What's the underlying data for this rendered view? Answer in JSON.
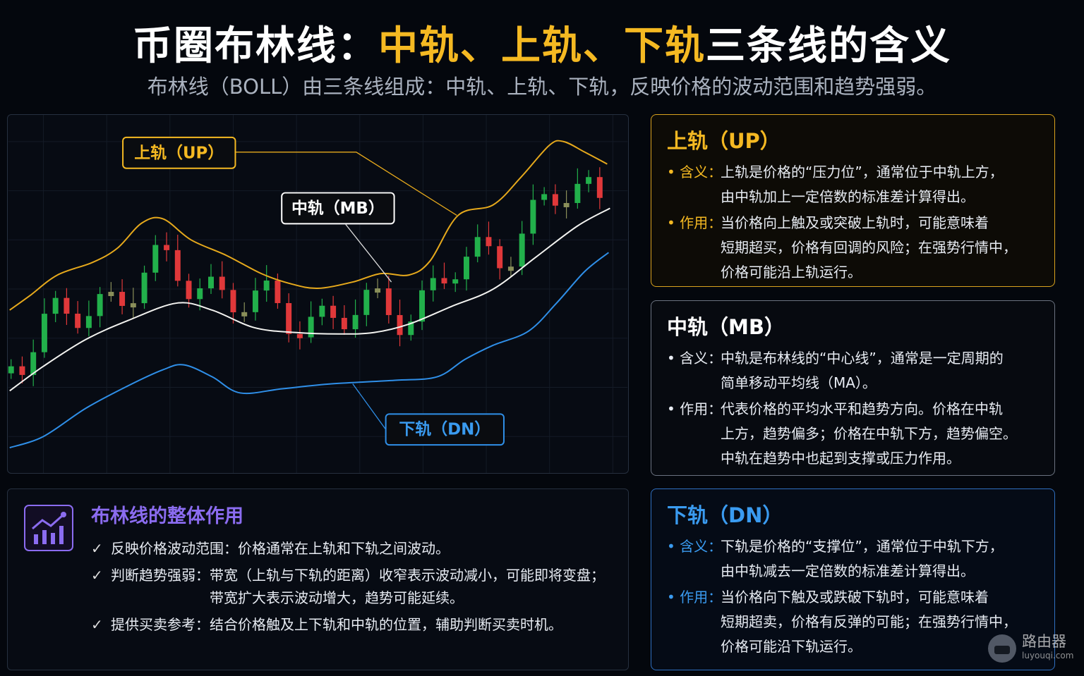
{
  "header": {
    "title": [
      "币圈布林线：",
      "中轨、上轨、下轨",
      "三条线的含义"
    ],
    "subtitle": "布林线（BOLL）由三条线组成：中轨、上轨、下轨，反映价格的波动范围和趋势强弱。"
  },
  "chart": {
    "labels": {
      "up": "上轨（UP）",
      "mb": "中轨（MB）",
      "dn": "下轨（DN）"
    }
  },
  "summary": {
    "title": "布林线的整体作用",
    "items": [
      {
        "label": "反映价格波动范围：",
        "lines": [
          "价格通常在上轨和下轨之间波动。"
        ]
      },
      {
        "label": "判断趋势强弱：",
        "lines": [
          "带宽（上轨与下轨的距离）收窄表示波动减小，可能即将变盘；",
          "带宽扩大表示波动增大，趋势可能延续。"
        ]
      },
      {
        "label": "提供买卖参考：",
        "lines": [
          "结合价格触及上下轨和中轨的位置，辅助判断买卖时机。"
        ]
      }
    ]
  },
  "cards": [
    {
      "title": "上轨（UP）",
      "items": [
        {
          "label": "含义：",
          "lines": [
            "上轨是价格的“压力位”，通常位于中轨上方，",
            "由中轨加上一定倍数的标准差计算得出。"
          ]
        },
        {
          "label": "作用：",
          "lines": [
            "当价格向上触及或突破上轨时，可能意味着",
            "短期超买，价格有回调的风险；在强势行情中，",
            "价格可能沿上轨运行。"
          ]
        }
      ]
    },
    {
      "title": "中轨（MB）",
      "items": [
        {
          "label": "含义：",
          "lines": [
            "中轨是布林线的“中心线”，通常是一定周期的",
            "简单移动平均线（MA）。"
          ]
        },
        {
          "label": "作用：",
          "lines": [
            "代表价格的平均水平和趋势方向。价格在中轨",
            "上方，趋势偏多；价格在中轨下方，趋势偏空。",
            "中轨在趋势中也起到支撑或压力作用。"
          ]
        }
      ]
    },
    {
      "title": "下轨（DN）",
      "items": [
        {
          "label": "含义：",
          "lines": [
            "下轨是价格的“支撑位”，通常位于中轨下方，",
            "由中轨减去一定倍数的标准差计算得出。"
          ]
        },
        {
          "label": "作用：",
          "lines": [
            "当价格向下触及或跌破下轨时，可能意味着",
            "短期超卖，价格有反弹的可能；在强势行情中，",
            "价格可能沿下轨运行。"
          ]
        }
      ]
    }
  ],
  "watermark": {
    "name": "路由器",
    "url": "luyouqi.com"
  }
}
